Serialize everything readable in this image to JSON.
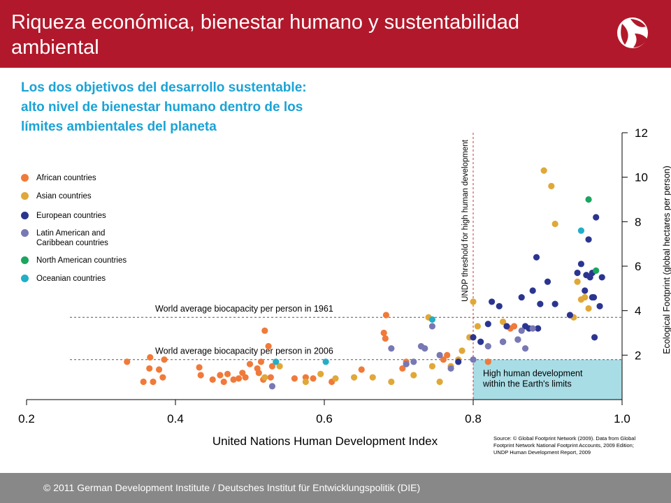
{
  "header": {
    "title": "Riqueza económica, bienestar humano y sustentabilidad ambiental"
  },
  "subtitle": "Los dos objetivos del desarrollo sustentable: alto nivel de bienestar humano dentro de los límites ambientales del planeta",
  "legend": [
    {
      "label": "African countries",
      "color": "#f07a3a"
    },
    {
      "label": "Asian countries",
      "color": "#e0a838"
    },
    {
      "label": "European countries",
      "color": "#2b3590"
    },
    {
      "label": "Latin American and Caribbean countries",
      "color": "#7878b4"
    },
    {
      "label": "North American countries",
      "color": "#1aa660"
    },
    {
      "label": "Oceanian countries",
      "color": "#22aec8"
    }
  ],
  "footer": {
    "text": "© 2011  German Development Institute / Deutsches Institut für Entwicklungspolitik (DIE)"
  },
  "chart_data": {
    "type": "scatter",
    "xlabel": "United Nations Human Development Index",
    "ylabel": "Ecological Footprint (global hectares per person)",
    "xlim": [
      0.2,
      1.0
    ],
    "ylim": [
      0,
      12
    ],
    "xticks": [
      0.2,
      0.4,
      0.6,
      0.8,
      1.0
    ],
    "yticks": [
      2,
      4,
      6,
      8,
      10,
      12
    ],
    "hline_1961": {
      "y": 3.7,
      "label": "World average biocapacity per person in 1961"
    },
    "hline_2006": {
      "y": 1.8,
      "label": "World average biocapacity per person in 2006"
    },
    "vline": {
      "x": 0.8,
      "label": "UNDP threshold for high human development"
    },
    "box_label": "High human development within the Earth's limits",
    "source": "Source: © Global Footprint Network (2009). Data from Global Footprint Network National Footprint Accounts, 2009 Edition; UNDP Human Development Report, 2009",
    "series": [
      {
        "name": "African countries",
        "color": "#f07a3a",
        "points": [
          [
            0.335,
            1.7
          ],
          [
            0.357,
            0.8
          ],
          [
            0.365,
            1.4
          ],
          [
            0.366,
            1.9
          ],
          [
            0.37,
            0.8
          ],
          [
            0.378,
            1.35
          ],
          [
            0.383,
            1.0
          ],
          [
            0.385,
            1.8
          ],
          [
            0.432,
            1.45
          ],
          [
            0.434,
            1.1
          ],
          [
            0.45,
            0.9
          ],
          [
            0.46,
            1.1
          ],
          [
            0.465,
            0.8
          ],
          [
            0.47,
            1.15
          ],
          [
            0.478,
            0.9
          ],
          [
            0.485,
            0.95
          ],
          [
            0.49,
            1.2
          ],
          [
            0.494,
            1.0
          ],
          [
            0.5,
            1.6
          ],
          [
            0.51,
            1.4
          ],
          [
            0.512,
            1.2
          ],
          [
            0.515,
            1.7
          ],
          [
            0.518,
            0.9
          ],
          [
            0.52,
            3.1
          ],
          [
            0.525,
            2.4
          ],
          [
            0.528,
            1.0
          ],
          [
            0.53,
            1.5
          ],
          [
            0.56,
            0.95
          ],
          [
            0.575,
            1.0
          ],
          [
            0.585,
            0.95
          ],
          [
            0.61,
            0.8
          ],
          [
            0.65,
            1.35
          ],
          [
            0.68,
            3.0
          ],
          [
            0.682,
            2.75
          ],
          [
            0.683,
            3.8
          ],
          [
            0.705,
            1.4
          ],
          [
            0.71,
            1.7
          ],
          [
            0.76,
            1.8
          ],
          [
            0.765,
            2.0
          ],
          [
            0.82,
            1.7
          ],
          [
            0.85,
            3.2
          ],
          [
            0.855,
            3.3
          ]
        ]
      },
      {
        "name": "Asian countries",
        "color": "#e0a838",
        "points": [
          [
            0.52,
            1.0
          ],
          [
            0.54,
            1.5
          ],
          [
            0.575,
            0.8
          ],
          [
            0.595,
            1.15
          ],
          [
            0.615,
            0.95
          ],
          [
            0.64,
            1.0
          ],
          [
            0.665,
            1.0
          ],
          [
            0.69,
            0.8
          ],
          [
            0.71,
            1.6
          ],
          [
            0.72,
            1.1
          ],
          [
            0.74,
            3.7
          ],
          [
            0.745,
            1.5
          ],
          [
            0.755,
            0.8
          ],
          [
            0.77,
            1.5
          ],
          [
            0.78,
            1.8
          ],
          [
            0.785,
            2.2
          ],
          [
            0.795,
            2.8
          ],
          [
            0.8,
            4.4
          ],
          [
            0.806,
            3.3
          ],
          [
            0.84,
            3.5
          ],
          [
            0.895,
            10.3
          ],
          [
            0.905,
            9.6
          ],
          [
            0.91,
            7.9
          ],
          [
            0.935,
            3.7
          ],
          [
            0.94,
            5.3
          ],
          [
            0.945,
            4.5
          ],
          [
            0.95,
            4.6
          ],
          [
            0.955,
            4.1
          ]
        ]
      },
      {
        "name": "European countries",
        "color": "#2b3590",
        "points": [
          [
            0.78,
            1.7
          ],
          [
            0.8,
            2.8
          ],
          [
            0.81,
            2.6
          ],
          [
            0.82,
            3.4
          ],
          [
            0.825,
            4.4
          ],
          [
            0.835,
            4.2
          ],
          [
            0.84,
            2.6
          ],
          [
            0.845,
            3.3
          ],
          [
            0.86,
            2.7
          ],
          [
            0.865,
            4.6
          ],
          [
            0.87,
            3.3
          ],
          [
            0.875,
            3.2
          ],
          [
            0.88,
            4.9
          ],
          [
            0.885,
            6.4
          ],
          [
            0.887,
            3.2
          ],
          [
            0.89,
            4.3
          ],
          [
            0.9,
            5.3
          ],
          [
            0.91,
            4.3
          ],
          [
            0.93,
            3.8
          ],
          [
            0.94,
            5.7
          ],
          [
            0.945,
            6.1
          ],
          [
            0.95,
            4.9
          ],
          [
            0.952,
            5.6
          ],
          [
            0.955,
            7.2
          ],
          [
            0.957,
            5.5
          ],
          [
            0.96,
            4.6
          ],
          [
            0.962,
            4.6
          ],
          [
            0.965,
            8.2
          ],
          [
            0.963,
            2.8
          ],
          [
            0.97,
            4.2
          ],
          [
            0.973,
            5.5
          ],
          [
            0.96,
            5.7
          ]
        ]
      },
      {
        "name": "Latin American and Caribbean countries",
        "color": "#7878b4",
        "points": [
          [
            0.53,
            0.6
          ],
          [
            0.69,
            2.3
          ],
          [
            0.71,
            1.6
          ],
          [
            0.72,
            1.7
          ],
          [
            0.73,
            2.4
          ],
          [
            0.735,
            2.3
          ],
          [
            0.745,
            3.3
          ],
          [
            0.755,
            2.0
          ],
          [
            0.77,
            1.4
          ],
          [
            0.8,
            1.8
          ],
          [
            0.82,
            2.4
          ],
          [
            0.84,
            2.6
          ],
          [
            0.86,
            2.7
          ],
          [
            0.865,
            3.1
          ],
          [
            0.87,
            2.3
          ],
          [
            0.88,
            3.2
          ]
        ]
      },
      {
        "name": "North American countries",
        "color": "#1aa660",
        "points": [
          [
            0.955,
            9.0
          ],
          [
            0.965,
            5.8
          ]
        ]
      },
      {
        "name": "Oceanian countries",
        "color": "#22aec8",
        "points": [
          [
            0.535,
            1.7
          ],
          [
            0.602,
            1.7
          ],
          [
            0.745,
            3.6
          ],
          [
            0.945,
            7.6
          ]
        ]
      }
    ]
  }
}
